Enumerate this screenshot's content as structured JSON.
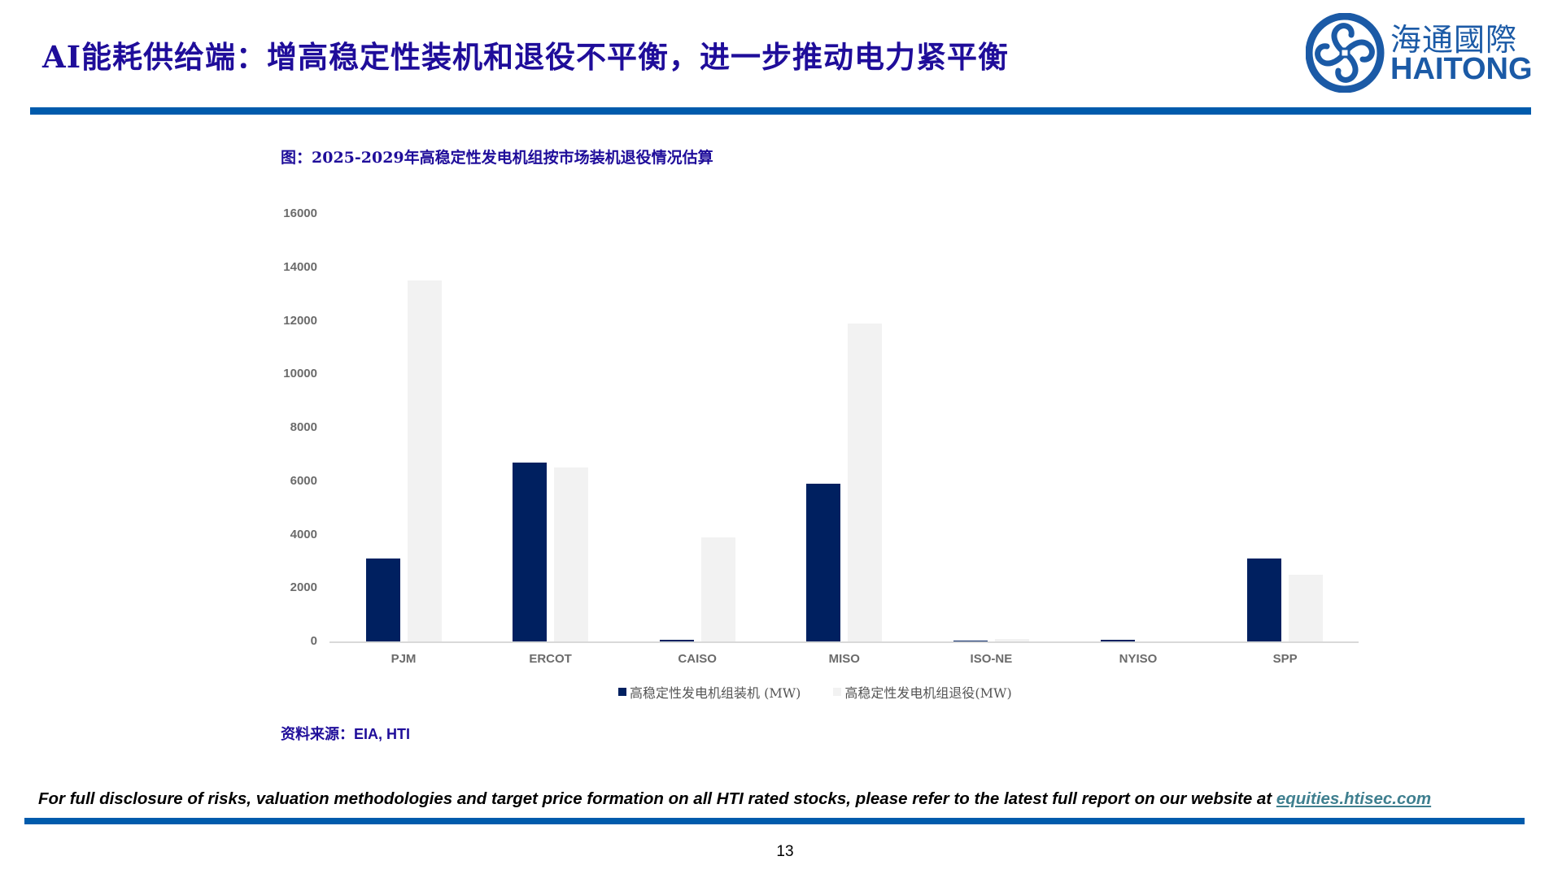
{
  "slide": {
    "title": "AI能耗供给端：增高稳定性装机和退役不平衡，进一步推动电力紧平衡",
    "page_number": "13"
  },
  "logo": {
    "name_cn": "海通國際",
    "name_en": "HAITONG",
    "color": "#1b5aa6"
  },
  "colors": {
    "accent_bar": "#005bac",
    "title": "#1f0d9a",
    "installed": "#002060",
    "retired": "#f2f2f2"
  },
  "chart": {
    "caption": "图：2025-2029年高稳定性发电机组按市场装机退役情况估算",
    "source_label": "资料来源：",
    "source_value": "EIA, HTI"
  },
  "chart_data": {
    "type": "bar",
    "title": "图：2025-2029年高稳定性发电机组按市场装机退役情况估算",
    "categories": [
      "PJM",
      "ERCOT",
      "CAISO",
      "MISO",
      "ISO-NE",
      "NYISO",
      "SPP"
    ],
    "series": [
      {
        "name": "高稳定性发电机组装机 (MW)",
        "color": "#002060",
        "values": [
          3100,
          6700,
          60,
          5900,
          30,
          60,
          3100
        ]
      },
      {
        "name": "高稳定性发电机组退役(MW)",
        "color": "#f2f2f2",
        "values": [
          13500,
          6500,
          3900,
          11900,
          100,
          0,
          2500
        ]
      }
    ],
    "yticks": [
      "16000",
      "14000",
      "12000",
      "10000",
      "8000",
      "6000",
      "4000",
      "2000",
      "0"
    ],
    "xlabel": "",
    "ylabel": "",
    "ylim": [
      0,
      16000
    ],
    "grid": false,
    "legend_position": "bottom"
  },
  "footer": {
    "disclaimer": "For full disclosure of risks, valuation methodologies and target price formation on all HTI rated stocks, please refer to the latest full report on our website at ",
    "link_text": "equities.htisec.com"
  }
}
